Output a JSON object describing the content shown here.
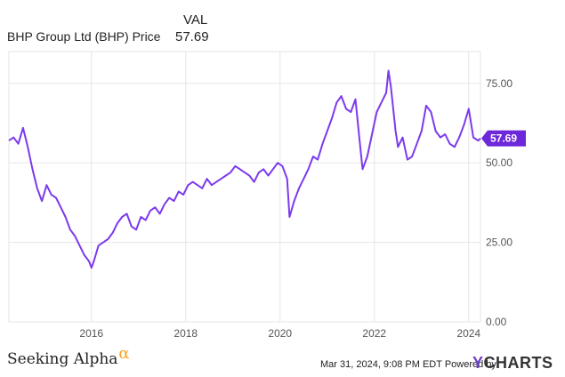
{
  "legend": {
    "header": "VAL",
    "series_name": "BHP Group Ltd (BHP) Price",
    "series_value": "57.69"
  },
  "colors": {
    "series": "#7c3aed",
    "badge": "#6d28d9",
    "grid": "#e6e6e6",
    "axis": "#cccccc"
  },
  "footer": {
    "brand": "Seeking Alpha",
    "brand_symbol": "α",
    "timestamp": "Mar 31, 2024, 9:08 PM EDT",
    "powered_by": "Powered by",
    "ycharts_y": "Y",
    "ycharts_rest": "CHARTS"
  },
  "chart_data": {
    "type": "line",
    "title": "",
    "xlabel": "",
    "ylabel": "",
    "xlim": [
      2014.25,
      2024.25
    ],
    "ylim": [
      0,
      85
    ],
    "grid": true,
    "x_ticks": [
      2016,
      2018,
      2020,
      2022,
      2024
    ],
    "x_tick_labels": [
      "2016",
      "2018",
      "2020",
      "2022",
      "2024"
    ],
    "y_ticks": [
      0,
      25,
      50,
      75
    ],
    "y_tick_labels": [
      "0.00",
      "25.00",
      "50.00",
      "75.00"
    ],
    "last_value_label": "57.69",
    "series": [
      {
        "name": "BHP Group Ltd (BHP) Price",
        "x": [
          2014.25,
          2014.35,
          2014.45,
          2014.55,
          2014.65,
          2014.75,
          2014.85,
          2014.95,
          2015.05,
          2015.15,
          2015.25,
          2015.35,
          2015.45,
          2015.55,
          2015.65,
          2015.75,
          2015.85,
          2015.95,
          2016.0,
          2016.05,
          2016.15,
          2016.25,
          2016.35,
          2016.45,
          2016.55,
          2016.65,
          2016.75,
          2016.85,
          2016.95,
          2017.05,
          2017.15,
          2017.25,
          2017.35,
          2017.45,
          2017.55,
          2017.65,
          2017.75,
          2017.85,
          2017.95,
          2018.05,
          2018.15,
          2018.25,
          2018.35,
          2018.45,
          2018.55,
          2018.65,
          2018.75,
          2018.85,
          2018.95,
          2019.05,
          2019.15,
          2019.25,
          2019.35,
          2019.45,
          2019.55,
          2019.65,
          2019.75,
          2019.85,
          2019.95,
          2020.05,
          2020.15,
          2020.2,
          2020.3,
          2020.4,
          2020.5,
          2020.6,
          2020.7,
          2020.8,
          2020.9,
          2021.0,
          2021.1,
          2021.2,
          2021.3,
          2021.4,
          2021.5,
          2021.6,
          2021.7,
          2021.75,
          2021.85,
          2021.95,
          2022.05,
          2022.15,
          2022.25,
          2022.3,
          2022.35,
          2022.45,
          2022.5,
          2022.6,
          2022.7,
          2022.8,
          2022.9,
          2023.0,
          2023.1,
          2023.2,
          2023.3,
          2023.4,
          2023.5,
          2023.6,
          2023.7,
          2023.8,
          2023.9,
          2024.0,
          2024.1,
          2024.2,
          2024.25
        ],
        "y": [
          57,
          58,
          56,
          61,
          55,
          48,
          42,
          38,
          43,
          40,
          39,
          36,
          33,
          29,
          27,
          24,
          21,
          19,
          17,
          19,
          24,
          25,
          26,
          28,
          31,
          33,
          34,
          30,
          29,
          33,
          32,
          35,
          36,
          34,
          37,
          39,
          38,
          41,
          40,
          43,
          44,
          43,
          42,
          45,
          43,
          44,
          45,
          46,
          47,
          49,
          48,
          47,
          46,
          44,
          47,
          48,
          46,
          48,
          50,
          49,
          45,
          33,
          38,
          42,
          45,
          48,
          52,
          51,
          56,
          60,
          64,
          69,
          71,
          67,
          66,
          70,
          55,
          48,
          52,
          59,
          66,
          69,
          72,
          79,
          74,
          60,
          55,
          58,
          51,
          52,
          56,
          60,
          68,
          66,
          60,
          58,
          59,
          56,
          55,
          58,
          62,
          67,
          58,
          57,
          57.69
        ]
      }
    ]
  }
}
